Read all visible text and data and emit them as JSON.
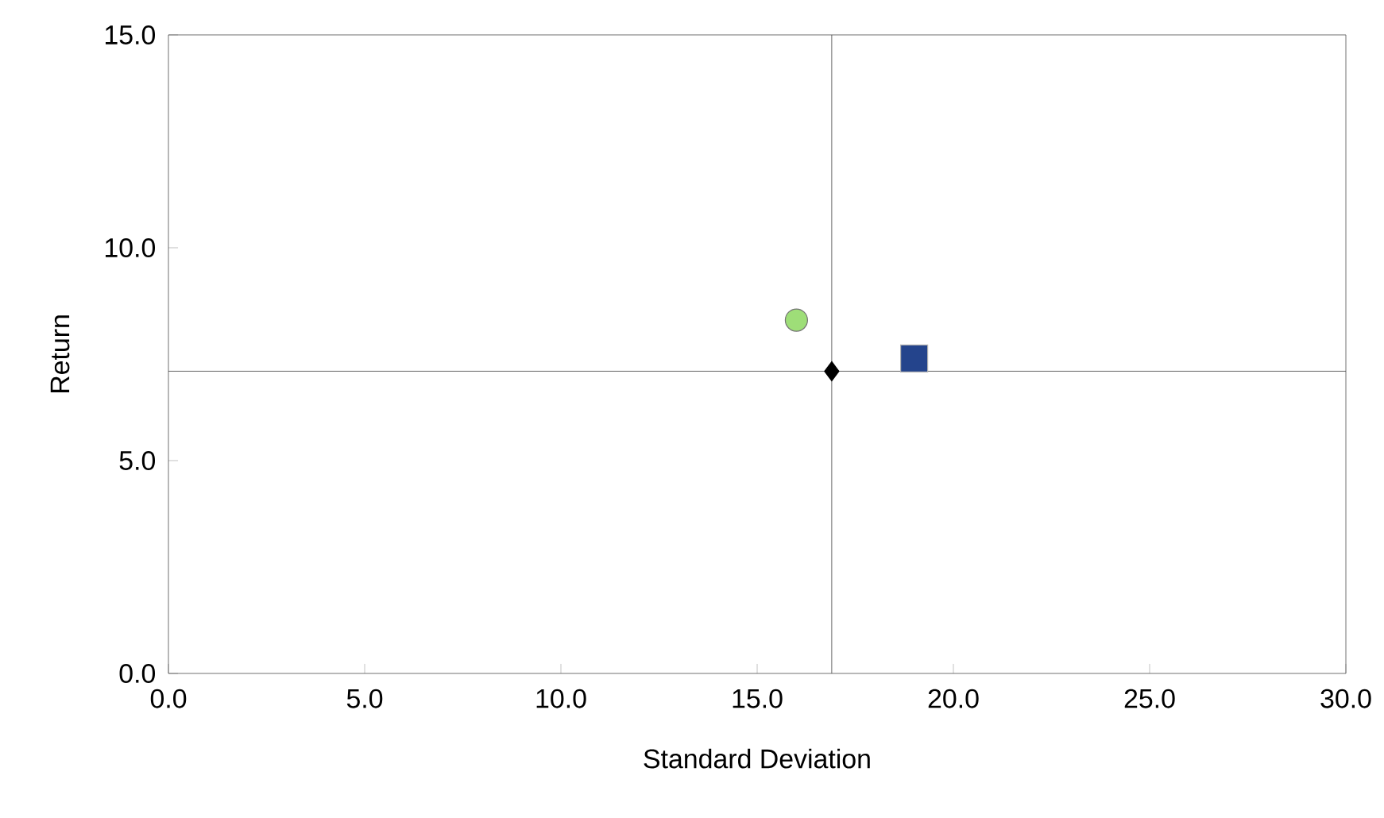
{
  "chart_data": {
    "type": "scatter",
    "xlabel": "Standard Deviation",
    "ylabel": "Return",
    "xlim": [
      0,
      30
    ],
    "ylim": [
      0,
      15
    ],
    "xticks": [
      {
        "value": 0,
        "label": "0.0"
      },
      {
        "value": 5,
        "label": "5.0"
      },
      {
        "value": 10,
        "label": "10.0"
      },
      {
        "value": 15,
        "label": "15.0"
      },
      {
        "value": 20,
        "label": "20.0"
      },
      {
        "value": 25,
        "label": "25.0"
      },
      {
        "value": 30,
        "label": "30.0"
      }
    ],
    "yticks": [
      {
        "value": 0,
        "label": "0.0"
      },
      {
        "value": 5,
        "label": "5.0"
      },
      {
        "value": 10,
        "label": "10.0"
      },
      {
        "value": 15,
        "label": "15.0"
      }
    ],
    "series": [
      {
        "color": "#9ede78",
        "marker": "circle",
        "x": [
          16.0
        ],
        "values": [
          8.3
        ]
      },
      {
        "color": "#24448c",
        "marker": "square",
        "x": [
          19.0
        ],
        "values": [
          7.4
        ]
      },
      {
        "color": "#000000",
        "marker": "diamond",
        "x": [
          16.9
        ],
        "values": [
          7.1
        ]
      }
    ],
    "ref_lines": [
      {
        "axis": "x",
        "value": 16.9,
        "color": "#404040"
      },
      {
        "axis": "y",
        "value": 7.1,
        "color": "#404040"
      }
    ]
  }
}
